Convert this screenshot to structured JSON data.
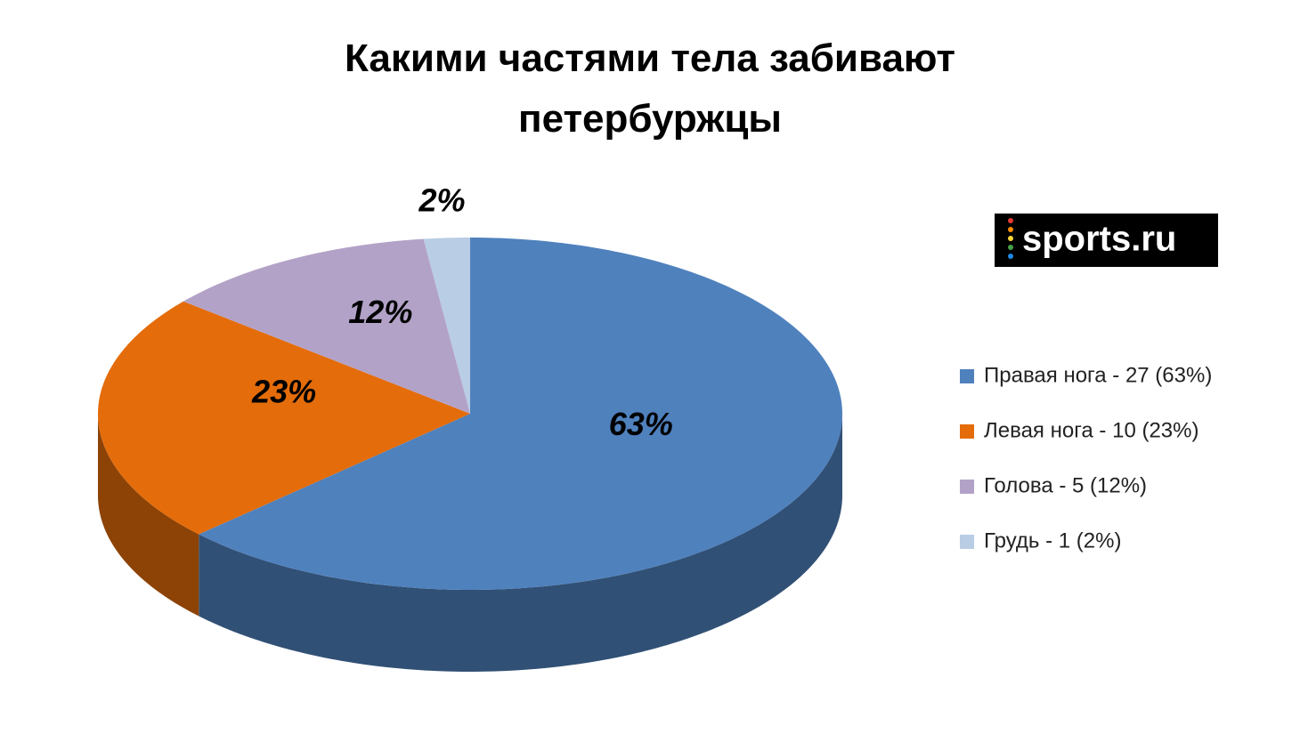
{
  "chart_data": {
    "type": "pie",
    "title": "Какими частями тела забивают петербуржцы",
    "logo": "sports.ru",
    "categories": [
      "Правая нога - 27 (63%)",
      "Левая нога - 10 (23%)",
      "Голова - 5 (12%)",
      "Грудь - 1 (2%)"
    ],
    "values": [
      63,
      23,
      12,
      2
    ],
    "value_labels": [
      "63%",
      "23%",
      "12%",
      "2%"
    ],
    "colors": [
      "#4f81bd",
      "#e46c0a",
      "#b3a2c7",
      "#b9cde5"
    ],
    "legend": "right"
  }
}
